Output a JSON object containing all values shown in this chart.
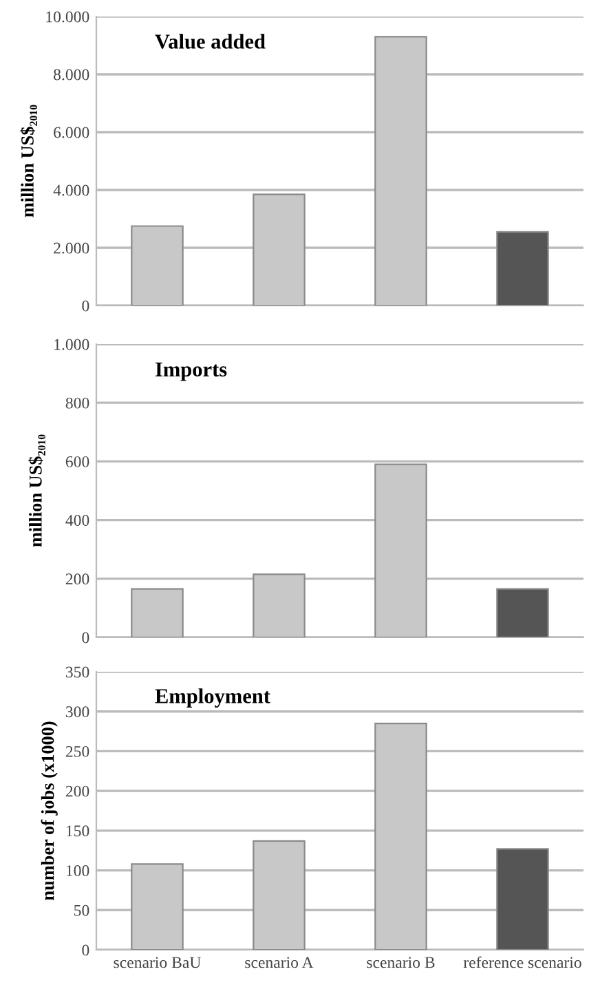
{
  "chart_data": [
    {
      "type": "bar",
      "title": "Value added",
      "ylabel": "million US$₂₀₁₀",
      "categories": [
        null,
        null,
        null,
        null
      ],
      "values": [
        2750,
        3850,
        9300,
        2550
      ],
      "colors": [
        "#c8c8c8",
        "#c8c8c8",
        "#c8c8c8",
        "#555555"
      ],
      "ylim": [
        0,
        10000
      ],
      "yticks": [
        {
          "value": 0,
          "label": "0"
        },
        {
          "value": 2000,
          "label": "2.000"
        },
        {
          "value": 4000,
          "label": "4.000"
        },
        {
          "value": 6000,
          "label": "6.000"
        },
        {
          "value": 8000,
          "label": "8.000"
        },
        {
          "value": 10000,
          "label": "10.000"
        }
      ],
      "grid": "y",
      "tick_labels": "y"
    },
    {
      "type": "bar",
      "title": "Imports",
      "ylabel": "million US$₂₀₁₀",
      "categories": [
        null,
        null,
        null,
        null
      ],
      "values": [
        165,
        215,
        590,
        165
      ],
      "colors": [
        "#c8c8c8",
        "#c8c8c8",
        "#c8c8c8",
        "#555555"
      ],
      "ylim": [
        0,
        1000
      ],
      "yticks": [
        0,
        200,
        400,
        600,
        800,
        {
          "value": 1000,
          "label": "1.000"
        }
      ],
      "grid": "y",
      "tick_labels": "y"
    },
    {
      "type": "bar",
      "title": "Employment",
      "ylabel": "number of jobs (x1000)",
      "categories": [
        "scenario BaU",
        "scenario A",
        "scenario B",
        "reference scenario"
      ],
      "values": [
        108,
        137,
        285,
        127
      ],
      "colors": [
        "#c8c8c8",
        "#c8c8c8",
        "#c8c8c8",
        "#555555"
      ],
      "ylim": [
        0,
        350
      ],
      "yticks": [
        0,
        50,
        100,
        150,
        200,
        250,
        300,
        350
      ],
      "grid": "y"
    }
  ]
}
